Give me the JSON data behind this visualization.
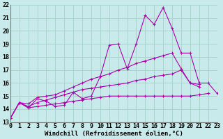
{
  "bg_color": "#c8eaea",
  "grid_color": "#aad4cc",
  "line_color": "#aa00aa",
  "xlabel": "Windchill (Refroidissement éolien,°C)",
  "xlabel_fontsize": 6.5,
  "tick_fontsize": 6.0,
  "xmin": 0,
  "xmax": 23,
  "ymin": 13,
  "ymax": 22,
  "line1_x": [
    0,
    1,
    2,
    3,
    4,
    5,
    6,
    7,
    8,
    9,
    10,
    11,
    12,
    13,
    14,
    15,
    16,
    17,
    18,
    19,
    20,
    21,
    22,
    23
  ],
  "line1_y": [
    13.3,
    14.5,
    14.1,
    14.8,
    14.6,
    14.2,
    14.3,
    15.3,
    14.8,
    15.0,
    16.5,
    18.9,
    19.0,
    17.1,
    19.0,
    21.2,
    20.5,
    21.8,
    20.2,
    18.3,
    18.3,
    16.0,
    16.0,
    15.2
  ],
  "line2_x": [
    0,
    1,
    2,
    3,
    4,
    5,
    6,
    7,
    8,
    9,
    10,
    11,
    12,
    13,
    14,
    15,
    16,
    17,
    18,
    19,
    20,
    21,
    22,
    23
  ],
  "line2_y": [
    13.3,
    14.5,
    14.4,
    14.9,
    15.0,
    15.1,
    15.4,
    15.7,
    16.0,
    16.3,
    16.5,
    16.7,
    17.0,
    17.2,
    17.5,
    17.7,
    17.9,
    18.1,
    18.3,
    17.1,
    16.0,
    15.9,
    null,
    null
  ],
  "line3_x": [
    0,
    1,
    2,
    3,
    4,
    5,
    6,
    7,
    8,
    9,
    10,
    11,
    12,
    13,
    14,
    15,
    16,
    17,
    18,
    19,
    20,
    21,
    22,
    23
  ],
  "line3_y": [
    13.3,
    14.5,
    14.2,
    14.5,
    14.7,
    14.9,
    15.1,
    15.3,
    15.5,
    15.6,
    15.7,
    15.8,
    15.9,
    16.0,
    16.2,
    16.3,
    16.5,
    16.6,
    16.7,
    17.0,
    16.0,
    15.7,
    null,
    null
  ],
  "line4_x": [
    0,
    1,
    2,
    3,
    4,
    5,
    6,
    7,
    8,
    9,
    10,
    11,
    12,
    13,
    14,
    15,
    16,
    17,
    18,
    19,
    20,
    21,
    22
  ],
  "line4_y": [
    13.3,
    14.5,
    14.1,
    14.2,
    14.3,
    14.4,
    14.5,
    14.6,
    14.7,
    14.8,
    14.9,
    15.0,
    15.0,
    15.0,
    15.0,
    15.0,
    15.0,
    15.0,
    15.0,
    15.0,
    15.0,
    15.1,
    15.2
  ]
}
